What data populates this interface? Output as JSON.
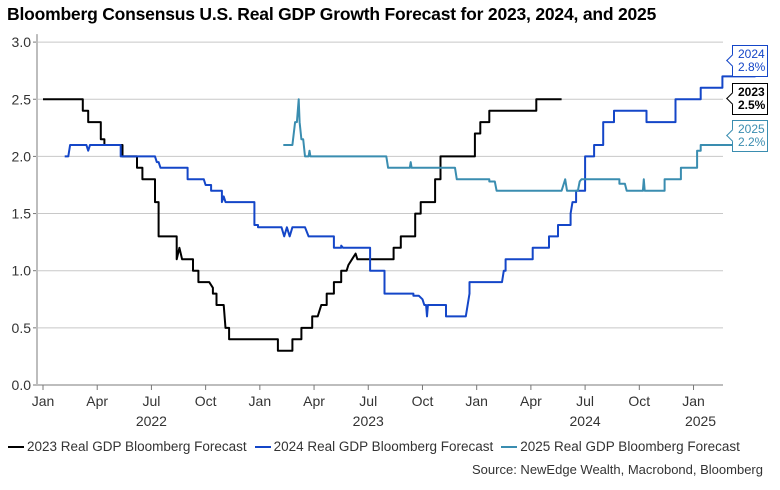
{
  "title": "Bloomberg Consensus U.S. Real GDP Growth Forecast for 2023, 2024, and 2025",
  "source": "Source: NewEdge Wealth, Macrobond, Bloomberg",
  "colors": {
    "s2023": "#000000",
    "s2024": "#1446c8",
    "s2025": "#3a8db0",
    "grid": "#c8c8c8",
    "axis": "#bdbdbd"
  },
  "end_tags": [
    {
      "year": "2024",
      "value": "2.8%",
      "series": "s2024"
    },
    {
      "year": "2023",
      "value": "2.5%",
      "series": "s2023"
    },
    {
      "year": "2025",
      "value": "2.2%",
      "series": "s2025"
    }
  ],
  "chart_data": {
    "type": "line",
    "title": "Bloomberg Consensus U.S. Real GDP Growth Forecast for 2023, 2024, and 2025",
    "xlabel": "",
    "ylabel": "",
    "x_unit": "months since Jan 2022",
    "xlim": [
      0,
      37.5
    ],
    "ylim": [
      0,
      3.0
    ],
    "y_ticks": [
      "0.0",
      "0.5",
      "1.0",
      "1.5",
      "2.0",
      "2.5",
      "3.0"
    ],
    "x_ticks": [
      {
        "m": 0,
        "label": "Jan"
      },
      {
        "m": 3,
        "label": "Apr"
      },
      {
        "m": 6,
        "label": "Jul"
      },
      {
        "m": 9,
        "label": "Oct"
      },
      {
        "m": 12,
        "label": "Jan"
      },
      {
        "m": 15,
        "label": "Apr"
      },
      {
        "m": 18,
        "label": "Jul"
      },
      {
        "m": 21,
        "label": "Oct"
      },
      {
        "m": 24,
        "label": "Jan"
      },
      {
        "m": 27,
        "label": "Apr"
      },
      {
        "m": 30,
        "label": "Jul"
      },
      {
        "m": 33,
        "label": "Oct"
      },
      {
        "m": 36,
        "label": "Jan"
      }
    ],
    "year_labels": [
      {
        "m": 6,
        "label": "2022"
      },
      {
        "m": 18,
        "label": "2023"
      },
      {
        "m": 30,
        "label": "2024"
      },
      {
        "m": 36,
        "label": "2025"
      }
    ],
    "grid": true,
    "legend_position": "bottom",
    "series": [
      {
        "key": "s2023",
        "name": "2023 Real GDP Bloomberg Forecast",
        "points": [
          [
            0,
            2.5
          ],
          [
            2.2,
            2.5
          ],
          [
            2.2,
            2.4
          ],
          [
            2.5,
            2.4
          ],
          [
            2.5,
            2.3
          ],
          [
            3.2,
            2.3
          ],
          [
            3.2,
            2.15
          ],
          [
            3.4,
            2.15
          ],
          [
            3.4,
            2.1
          ],
          [
            4.4,
            2.1
          ],
          [
            4.4,
            2.0
          ],
          [
            5.2,
            2.0
          ],
          [
            5.2,
            1.9
          ],
          [
            5.5,
            1.9
          ],
          [
            5.5,
            1.8
          ],
          [
            6.2,
            1.8
          ],
          [
            6.2,
            1.6
          ],
          [
            6.4,
            1.6
          ],
          [
            6.4,
            1.3
          ],
          [
            7.4,
            1.3
          ],
          [
            7.4,
            1.1
          ],
          [
            7.55,
            1.2
          ],
          [
            7.7,
            1.1
          ],
          [
            8.3,
            1.1
          ],
          [
            8.3,
            1.0
          ],
          [
            8.6,
            1.0
          ],
          [
            8.6,
            0.9
          ],
          [
            9.2,
            0.9
          ],
          [
            9.4,
            0.85
          ],
          [
            9.4,
            0.8
          ],
          [
            9.6,
            0.8
          ],
          [
            9.6,
            0.7
          ],
          [
            10.0,
            0.7
          ],
          [
            10.1,
            0.5
          ],
          [
            10.3,
            0.5
          ],
          [
            10.3,
            0.4
          ],
          [
            13.0,
            0.4
          ],
          [
            13.0,
            0.3
          ],
          [
            13.8,
            0.3
          ],
          [
            13.8,
            0.4
          ],
          [
            14.3,
            0.4
          ],
          [
            14.3,
            0.5
          ],
          [
            14.9,
            0.5
          ],
          [
            14.9,
            0.6
          ],
          [
            15.2,
            0.6
          ],
          [
            15.3,
            0.65
          ],
          [
            15.4,
            0.7
          ],
          [
            15.7,
            0.7
          ],
          [
            15.7,
            0.8
          ],
          [
            16.1,
            0.8
          ],
          [
            16.1,
            0.9
          ],
          [
            16.5,
            0.9
          ],
          [
            16.5,
            1.0
          ],
          [
            16.8,
            1.0
          ],
          [
            16.9,
            1.05
          ],
          [
            17.1,
            1.1
          ],
          [
            17.3,
            1.15
          ],
          [
            17.4,
            1.1
          ],
          [
            19.4,
            1.1
          ],
          [
            19.4,
            1.2
          ],
          [
            19.8,
            1.2
          ],
          [
            19.8,
            1.3
          ],
          [
            20.6,
            1.3
          ],
          [
            20.6,
            1.5
          ],
          [
            20.9,
            1.5
          ],
          [
            20.9,
            1.6
          ],
          [
            21.7,
            1.6
          ],
          [
            21.7,
            1.8
          ],
          [
            22.0,
            1.8
          ],
          [
            22.0,
            2.0
          ],
          [
            23.9,
            2.0
          ],
          [
            23.9,
            2.2
          ],
          [
            24.2,
            2.2
          ],
          [
            24.2,
            2.3
          ],
          [
            24.7,
            2.3
          ],
          [
            24.7,
            2.4
          ],
          [
            27.3,
            2.4
          ],
          [
            27.3,
            2.5
          ],
          [
            28.7,
            2.5
          ]
        ]
      },
      {
        "key": "s2024",
        "name": "2024 Real GDP Bloomberg Forecast",
        "points": [
          [
            1.2,
            2.0
          ],
          [
            1.4,
            2.0
          ],
          [
            1.5,
            2.1
          ],
          [
            2.4,
            2.1
          ],
          [
            2.5,
            2.05
          ],
          [
            2.6,
            2.1
          ],
          [
            4.3,
            2.1
          ],
          [
            4.3,
            2.0
          ],
          [
            6.2,
            2.0
          ],
          [
            6.3,
            1.95
          ],
          [
            6.4,
            1.95
          ],
          [
            6.5,
            1.9
          ],
          [
            8.0,
            1.9
          ],
          [
            8.0,
            1.8
          ],
          [
            8.9,
            1.8
          ],
          [
            9.0,
            1.75
          ],
          [
            9.3,
            1.75
          ],
          [
            9.3,
            1.7
          ],
          [
            9.9,
            1.7
          ],
          [
            9.9,
            1.6
          ],
          [
            10.0,
            1.65
          ],
          [
            10.1,
            1.6
          ],
          [
            11.7,
            1.6
          ],
          [
            11.7,
            1.4
          ],
          [
            11.9,
            1.4
          ],
          [
            11.9,
            1.38
          ],
          [
            13.2,
            1.38
          ],
          [
            13.35,
            1.3
          ],
          [
            13.5,
            1.38
          ],
          [
            13.65,
            1.3
          ],
          [
            13.8,
            1.38
          ],
          [
            14.5,
            1.38
          ],
          [
            14.7,
            1.3
          ],
          [
            16.1,
            1.3
          ],
          [
            16.1,
            1.2
          ],
          [
            16.5,
            1.2
          ],
          [
            16.5,
            1.22
          ],
          [
            16.6,
            1.2
          ],
          [
            18.1,
            1.2
          ],
          [
            18.1,
            1.0
          ],
          [
            18.9,
            1.0
          ],
          [
            18.9,
            0.8
          ],
          [
            20.5,
            0.8
          ],
          [
            20.5,
            0.78
          ],
          [
            20.8,
            0.78
          ],
          [
            21.0,
            0.75
          ],
          [
            21.1,
            0.7
          ],
          [
            21.2,
            0.7
          ],
          [
            21.25,
            0.6
          ],
          [
            21.3,
            0.7
          ],
          [
            22.3,
            0.7
          ],
          [
            22.3,
            0.6
          ],
          [
            23.4,
            0.6
          ],
          [
            23.6,
            0.8
          ],
          [
            23.6,
            0.9
          ],
          [
            25.4,
            0.9
          ],
          [
            25.5,
            1.0
          ],
          [
            25.6,
            1.0
          ],
          [
            25.6,
            1.1
          ],
          [
            27.1,
            1.1
          ],
          [
            27.1,
            1.2
          ],
          [
            28.0,
            1.2
          ],
          [
            28.0,
            1.3
          ],
          [
            28.5,
            1.3
          ],
          [
            28.5,
            1.4
          ],
          [
            29.2,
            1.4
          ],
          [
            29.2,
            1.5
          ],
          [
            29.3,
            1.6
          ],
          [
            29.5,
            1.6
          ],
          [
            29.5,
            1.7
          ],
          [
            30.0,
            1.7
          ],
          [
            30.0,
            2.0
          ],
          [
            30.5,
            2.0
          ],
          [
            30.5,
            2.1
          ],
          [
            31.0,
            2.1
          ],
          [
            31.0,
            2.3
          ],
          [
            31.6,
            2.3
          ],
          [
            31.6,
            2.4
          ],
          [
            33.4,
            2.4
          ],
          [
            33.4,
            2.3
          ],
          [
            35.0,
            2.3
          ],
          [
            35.0,
            2.5
          ],
          [
            36.4,
            2.5
          ],
          [
            36.4,
            2.6
          ],
          [
            37.6,
            2.6
          ],
          [
            37.6,
            2.7
          ],
          [
            39.4,
            2.7
          ],
          [
            39.4,
            2.75
          ],
          [
            39.5,
            2.75
          ],
          [
            39.6,
            2.8
          ]
        ]
      },
      {
        "key": "s2025",
        "name": "2025 Real GDP Bloomberg Forecast",
        "points": [
          [
            13.3,
            2.1
          ],
          [
            13.8,
            2.1
          ],
          [
            13.95,
            2.3
          ],
          [
            14.05,
            2.3
          ],
          [
            14.15,
            2.5
          ],
          [
            14.2,
            2.3
          ],
          [
            14.3,
            2.15
          ],
          [
            14.4,
            2.15
          ],
          [
            14.5,
            2.0
          ],
          [
            14.7,
            2.0
          ],
          [
            14.75,
            2.05
          ],
          [
            14.8,
            2.0
          ],
          [
            19.0,
            2.0
          ],
          [
            19.1,
            1.9
          ],
          [
            20.3,
            1.9
          ],
          [
            20.35,
            1.95
          ],
          [
            20.4,
            1.9
          ],
          [
            22.8,
            1.9
          ],
          [
            22.9,
            1.8
          ],
          [
            24.7,
            1.8
          ],
          [
            24.7,
            1.78
          ],
          [
            25.0,
            1.78
          ],
          [
            25.1,
            1.7
          ],
          [
            28.7,
            1.7
          ],
          [
            28.8,
            1.75
          ],
          [
            28.9,
            1.8
          ],
          [
            29.0,
            1.7
          ],
          [
            29.6,
            1.7
          ],
          [
            29.7,
            1.78
          ],
          [
            29.8,
            1.8
          ],
          [
            31.9,
            1.8
          ],
          [
            31.9,
            1.76
          ],
          [
            32.2,
            1.76
          ],
          [
            32.3,
            1.7
          ],
          [
            33.2,
            1.7
          ],
          [
            33.25,
            1.8
          ],
          [
            33.3,
            1.7
          ],
          [
            34.4,
            1.7
          ],
          [
            34.4,
            1.8
          ],
          [
            35.3,
            1.8
          ],
          [
            35.3,
            1.9
          ],
          [
            36.2,
            1.9
          ],
          [
            36.2,
            2.05
          ],
          [
            36.4,
            2.05
          ],
          [
            36.4,
            2.1
          ],
          [
            39.5,
            2.1
          ],
          [
            39.6,
            2.2
          ]
        ]
      }
    ]
  }
}
